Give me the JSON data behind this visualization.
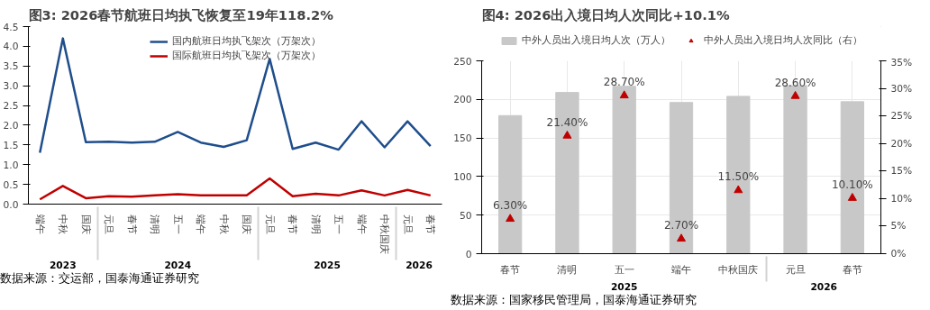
{
  "chart_data": [
    {
      "type": "line",
      "title": "图3:  2026春节航班日均执飞恢复至19年118.2%",
      "categories": [
        "端午",
        "中秋",
        "国庆",
        "元旦",
        "春节",
        "清明",
        "五一",
        "端午",
        "中秋",
        "国庆",
        "元旦",
        "春节",
        "清明",
        "五一",
        "端午",
        "中秋国庆",
        "元旦",
        "春节"
      ],
      "series": [
        {
          "name": "国内航班日均执飞架次（万架次）",
          "color": "#1f4e8c",
          "values": [
            1.3,
            4.2,
            1.57,
            1.58,
            1.56,
            1.58,
            1.83,
            1.56,
            1.45,
            1.62,
            3.68,
            1.4,
            1.56,
            1.38,
            2.1,
            1.44,
            2.1,
            1.47
          ]
        },
        {
          "name": "国际航班日均执飞架次（万架次）",
          "color": "#c00000",
          "values": [
            0.12,
            0.46,
            0.15,
            0.2,
            0.19,
            0.22,
            0.25,
            0.22,
            0.22,
            0.22,
            0.65,
            0.2,
            0.26,
            0.22,
            0.35,
            0.22,
            0.36,
            0.22
          ]
        }
      ],
      "ylim": [
        0,
        4.5
      ],
      "yticks": [
        {
          "value": 0,
          "label": "0.0"
        },
        0.5,
        {
          "value": 1,
          "label": "1.0"
        },
        1.5,
        {
          "value": 2,
          "label": "2.0"
        },
        2.5,
        {
          "value": 3,
          "label": "3.0"
        },
        3.5,
        {
          "value": 4,
          "label": "4.0"
        },
        4.5
      ],
      "grid": false,
      "legend": "top",
      "marker": "none",
      "line_style": "solid",
      "annotations": [
        "2023",
        "2024",
        "2025",
        "2026",
        "数据来源：交运部，国泰海通证券研究"
      ]
    },
    {
      "type": "bar",
      "title": "图4:  2026出入境日均人次同比+10.1%",
      "categories": [
        "春节",
        "清明",
        "五一",
        "端午",
        "中秋国庆",
        "元旦",
        "春节"
      ],
      "series": [
        {
          "name": "中外人员出入境日均人次（万人）",
          "color": "#c8c8c8",
          "values": [
            179,
            209,
            217,
            196,
            204,
            218,
            197
          ]
        },
        {
          "name": "中外人员出入境日均人次同比（右）",
          "type": "scatter",
          "axis": "y2",
          "marker": "triangle",
          "color": "#c00000",
          "values": [
            6.3,
            21.4,
            28.7,
            2.7,
            11.5,
            28.6,
            10.1
          ],
          "value_labels": [
            "6.30%",
            "21.40%",
            "28.70%",
            "2.70%",
            "11.50%",
            "28.60%",
            "10.10%"
          ]
        }
      ],
      "ylim": [
        0,
        250
      ],
      "yticks": [
        0,
        50,
        100,
        150,
        200,
        250
      ],
      "y2lim": [
        0,
        35
      ],
      "y2ticks": [
        {
          "value": 0,
          "label": "0%"
        },
        {
          "value": 5,
          "label": "5%"
        },
        {
          "value": 10,
          "label": "10%"
        },
        {
          "value": 15,
          "label": "15%"
        },
        {
          "value": 20,
          "label": "20%"
        },
        {
          "value": 25,
          "label": "25%"
        },
        {
          "value": 30,
          "label": "30%"
        },
        {
          "value": 35,
          "label": "35%"
        }
      ],
      "grid": true,
      "legend": "top",
      "annotations": [
        "2025",
        "2026",
        "数据来源：国家移民管理局，国泰海通证券研究"
      ]
    }
  ]
}
